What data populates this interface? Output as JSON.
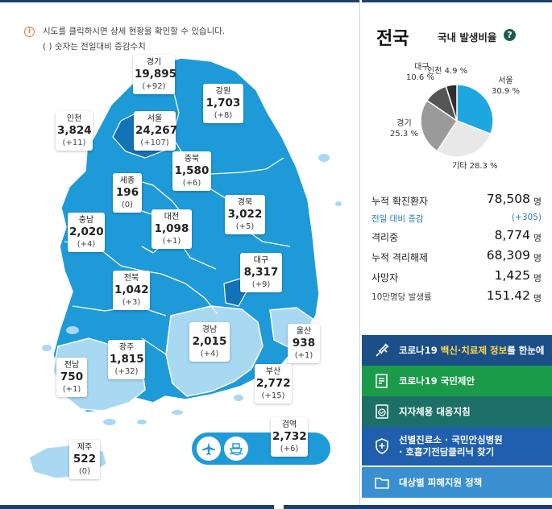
{
  "notice": {
    "line1": "시도를 클릭하시면 상세 현황을 확인할 수 있습니다.",
    "line2": "( ) 숫자는 전일대비 증감수치"
  },
  "regions": [
    {
      "name": "경기",
      "count": "19,895",
      "delta": "(+92)"
    },
    {
      "name": "강원",
      "count": "1,703",
      "delta": "(+8)"
    },
    {
      "name": "인천",
      "count": "3,824",
      "delta": "(+11)"
    },
    {
      "name": "서울",
      "count": "24,267",
      "delta": "(+107)"
    },
    {
      "name": "충북",
      "count": "1,580",
      "delta": "(+6)"
    },
    {
      "name": "세종",
      "count": "196",
      "delta": "(0)"
    },
    {
      "name": "경북",
      "count": "3,022",
      "delta": "(+5)"
    },
    {
      "name": "대전",
      "count": "1,098",
      "delta": "(+1)"
    },
    {
      "name": "충남",
      "count": "2,020",
      "delta": "(+4)"
    },
    {
      "name": "대구",
      "count": "8,317",
      "delta": "(+9)"
    },
    {
      "name": "전북",
      "count": "1,042",
      "delta": "(+3)"
    },
    {
      "name": "울산",
      "count": "938",
      "delta": "(+1)"
    },
    {
      "name": "경남",
      "count": "2,015",
      "delta": "(+4)"
    },
    {
      "name": "광주",
      "count": "1,815",
      "delta": "(+32)"
    },
    {
      "name": "전남",
      "count": "750",
      "delta": "(+1)"
    },
    {
      "name": "부산",
      "count": "2,772",
      "delta": "(+15)"
    },
    {
      "name": "검역",
      "count": "2,732",
      "delta": "(+6)"
    },
    {
      "name": "제주",
      "count": "522",
      "delta": "(0)"
    }
  ],
  "transport": {
    "air_icon": "airplane-icon",
    "sea_icon": "ship-icon"
  },
  "panel": {
    "title": "전국",
    "ratio_label": "국내 발생비율",
    "help": "?"
  },
  "chart_data": {
    "type": "pie",
    "title": "국내 발생비율",
    "slices": [
      {
        "label": "서울",
        "value": 30.9,
        "text": "30.9 %",
        "color": "#1ea6e1"
      },
      {
        "label": "기타",
        "value": 28.3,
        "text": "28.3 %",
        "color": "#e8e8e8"
      },
      {
        "label": "경기",
        "value": 25.3,
        "text": "25.3 %",
        "color": "#9a9a9a"
      },
      {
        "label": "대구",
        "value": 10.6,
        "text": "10.6 %",
        "color": "#555555"
      },
      {
        "label": "인천",
        "value": 4.9,
        "text": "4.9 %",
        "color": "#2e2e2e"
      }
    ]
  },
  "stats": {
    "confirmed_label": "누적 확진환자",
    "confirmed_value": "78,508",
    "confirmed_unit": "명",
    "change_label": "전일 대비 증감",
    "change_value": "(+305)",
    "isolated_label": "격리중",
    "isolated_value": "8,774",
    "isolated_unit": "명",
    "released_label": "누적 격리해제",
    "released_value": "68,309",
    "released_unit": "명",
    "deaths_label": "사망자",
    "deaths_value": "1,425",
    "deaths_unit": "명",
    "rate_label": "10만명당 발생률",
    "rate_value": "151.42",
    "rate_unit": "명"
  },
  "links": {
    "vaccine_pre": "코로나19 ",
    "vaccine_hl": "백신·치료제 정보",
    "vaccine_post": "를 한눈에",
    "proposal": "코로나19 국민제안",
    "local": "지자체용 대응지침",
    "hospital_line1": "선별진료소 · 국민안심병원",
    "hospital_line2": "· 호흡기전담클리닉 찾기",
    "support": "대상별 피해지원 정책"
  },
  "colors": {
    "map_dark": "#1473b8",
    "map_mid": "#1e9ad9",
    "map_light": "#a9d8f3",
    "btn_navy": "#1c4f88",
    "btn_green": "#1a9b4a",
    "btn_teal": "#1d7067",
    "btn_blue": "#1f5fae",
    "btn_sky": "#3a8fd0"
  }
}
